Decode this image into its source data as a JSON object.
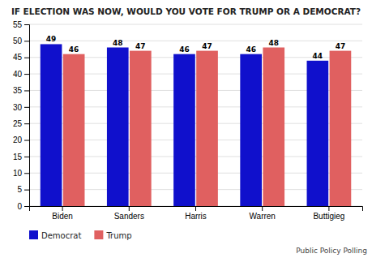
{
  "chart_data": {
    "type": "bar",
    "title": "IF ELECTION WAS NOW, WOULD YOU VOTE FOR TRUMP OR A DEMOCRAT?",
    "categories": [
      "Biden",
      "Sanders",
      "Harris",
      "Warren",
      "Buttigieg"
    ],
    "series": [
      {
        "name": "Democrat",
        "color": "#1010CC",
        "values": [
          49,
          48,
          46,
          46,
          44
        ]
      },
      {
        "name": "Trump",
        "color": "#E06060",
        "values": [
          46,
          47,
          47,
          48,
          47
        ]
      }
    ],
    "ylim": [
      0,
      55
    ],
    "yticks": [
      0,
      5,
      10,
      15,
      20,
      25,
      30,
      35,
      40,
      45,
      50,
      55
    ],
    "grid": true,
    "data_labels": true,
    "legend": "bottom",
    "annotations": [
      "Public Policy Polling"
    ]
  }
}
